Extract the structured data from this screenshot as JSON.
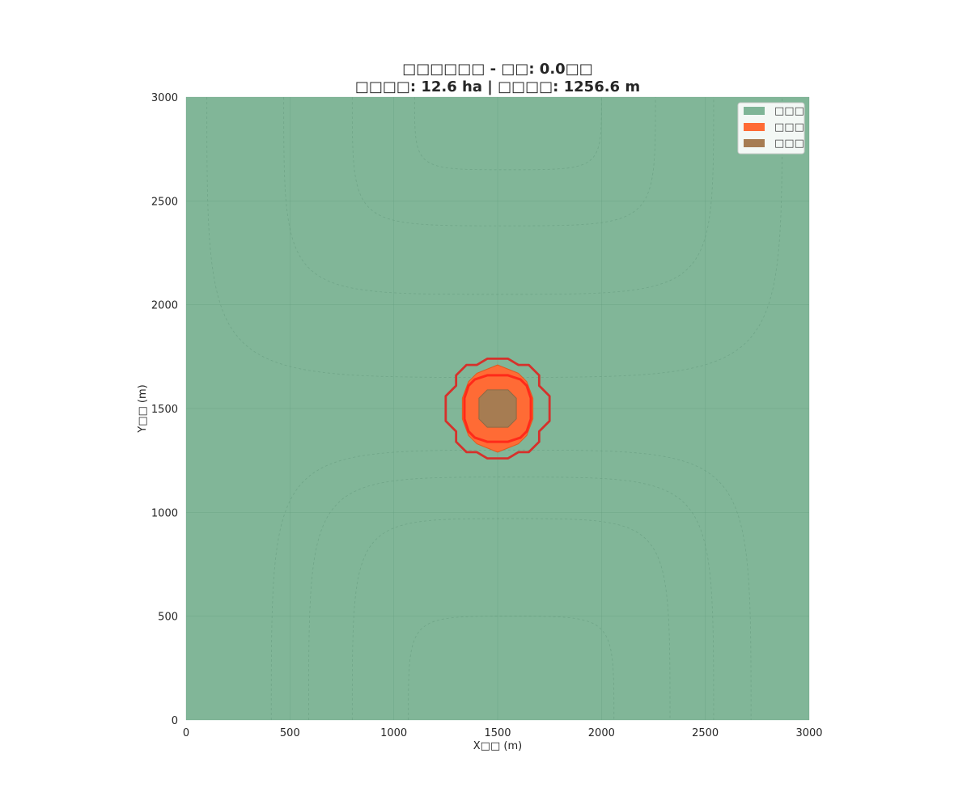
{
  "chart_data": {
    "type": "heatmap",
    "title_line1": "□□□□□□ - □□: 0.0□□",
    "title_line2": "□□□□: 12.6 ha | □□□□: 1256.6 m",
    "xlabel": "X□□ (m)",
    "ylabel": "Y□□ (m)",
    "xlim": [
      0,
      3000
    ],
    "ylim": [
      0,
      3000
    ],
    "xticks": [
      0,
      500,
      1000,
      1500,
      2000,
      2500,
      3000
    ],
    "yticks": [
      0,
      500,
      1000,
      1500,
      2000,
      2500,
      3000
    ],
    "grid": true,
    "legend_position": "top-right",
    "legend": [
      {
        "label": "□□□",
        "color": "#7fb597"
      },
      {
        "label": "□□□",
        "color": "#ff6b35"
      },
      {
        "label": "□□□",
        "color": "#a67c52"
      }
    ],
    "background_color": "#81b698",
    "burned_area_ha": 12.6,
    "perimeter_m": 1256.6,
    "time": 0.0,
    "burning_zone": {
      "color": "#ff6b35",
      "polygon": [
        [
          1500,
          1710
        ],
        [
          1550,
          1690
        ],
        [
          1600,
          1670
        ],
        [
          1640,
          1630
        ],
        [
          1670,
          1550
        ],
        [
          1670,
          1450
        ],
        [
          1640,
          1370
        ],
        [
          1600,
          1330
        ],
        [
          1550,
          1310
        ],
        [
          1500,
          1290
        ],
        [
          1450,
          1310
        ],
        [
          1400,
          1330
        ],
        [
          1360,
          1370
        ],
        [
          1330,
          1450
        ],
        [
          1330,
          1550
        ],
        [
          1360,
          1630
        ],
        [
          1400,
          1670
        ],
        [
          1450,
          1690
        ]
      ]
    },
    "burned_zone": {
      "color": "#a67c52",
      "polygon": [
        [
          1450,
          1590
        ],
        [
          1550,
          1590
        ],
        [
          1590,
          1550
        ],
        [
          1590,
          1450
        ],
        [
          1550,
          1410
        ],
        [
          1450,
          1410
        ],
        [
          1410,
          1450
        ],
        [
          1410,
          1550
        ]
      ]
    },
    "perimeter_outer": {
      "color": "#d6312b",
      "polygon": [
        [
          1450,
          1740
        ],
        [
          1550,
          1740
        ],
        [
          1600,
          1710
        ],
        [
          1650,
          1710
        ],
        [
          1700,
          1660
        ],
        [
          1700,
          1610
        ],
        [
          1750,
          1560
        ],
        [
          1750,
          1440
        ],
        [
          1700,
          1390
        ],
        [
          1700,
          1340
        ],
        [
          1650,
          1290
        ],
        [
          1600,
          1290
        ],
        [
          1550,
          1260
        ],
        [
          1450,
          1260
        ],
        [
          1400,
          1290
        ],
        [
          1350,
          1290
        ],
        [
          1300,
          1340
        ],
        [
          1300,
          1390
        ],
        [
          1250,
          1440
        ],
        [
          1250,
          1560
        ],
        [
          1300,
          1610
        ],
        [
          1300,
          1660
        ],
        [
          1350,
          1710
        ],
        [
          1400,
          1710
        ]
      ]
    },
    "perimeter_inner": {
      "color": "#ff2a1a",
      "polygon": [
        [
          1450,
          1660
        ],
        [
          1550,
          1660
        ],
        [
          1610,
          1640
        ],
        [
          1640,
          1610
        ],
        [
          1660,
          1550
        ],
        [
          1660,
          1450
        ],
        [
          1640,
          1390
        ],
        [
          1610,
          1360
        ],
        [
          1550,
          1340
        ],
        [
          1450,
          1340
        ],
        [
          1390,
          1360
        ],
        [
          1360,
          1390
        ],
        [
          1340,
          1450
        ],
        [
          1340,
          1550
        ],
        [
          1360,
          1610
        ],
        [
          1390,
          1640
        ]
      ]
    },
    "terrain_contours": {
      "color": "#6a9e82",
      "bottom_y_tops": [
        500,
        970,
        1170,
        1300
      ],
      "bottom_x_spans": [
        [
          1070,
          2060
        ],
        [
          800,
          2330
        ],
        [
          590,
          2540
        ],
        [
          410,
          2720
        ]
      ],
      "top_y_bottoms": [
        2650,
        2380,
        2050,
        1650
      ],
      "top_x_spans": [
        [
          1100,
          2000
        ],
        [
          800,
          2260
        ],
        [
          470,
          2540
        ],
        [
          100,
          2870
        ]
      ]
    }
  }
}
